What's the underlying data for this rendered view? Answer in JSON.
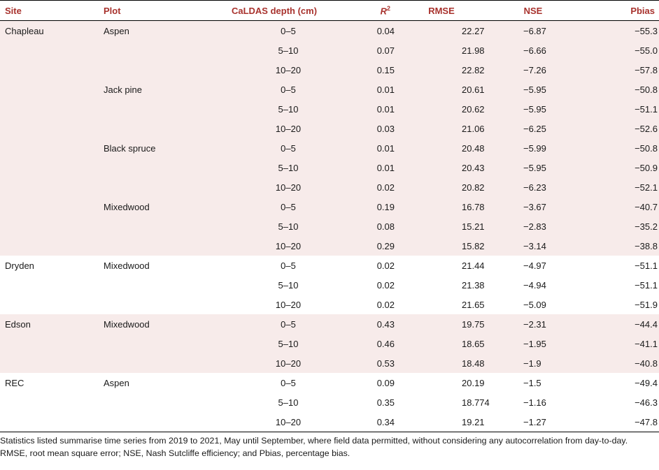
{
  "headers": {
    "site": "Site",
    "plot": "Plot",
    "depth": "CaLDAS depth (cm)",
    "r2_base": "R",
    "r2_sup": "2",
    "rmse": "RMSE",
    "nse": "NSE",
    "pbias": "Pbias"
  },
  "rows": [
    {
      "site": "Chapleau",
      "plot": "Aspen",
      "depth": "0–5",
      "r2": "0.04",
      "rmse": "22.27",
      "nse": "−6.87",
      "pbias": "−55.3"
    },
    {
      "site": "",
      "plot": "",
      "depth": "5–10",
      "r2": "0.07",
      "rmse": "21.98",
      "nse": "−6.66",
      "pbias": "−55.0"
    },
    {
      "site": "",
      "plot": "",
      "depth": "10–20",
      "r2": "0.15",
      "rmse": "22.82",
      "nse": "−7.26",
      "pbias": "−57.8"
    },
    {
      "site": "",
      "plot": "Jack pine",
      "depth": "0–5",
      "r2": "0.01",
      "rmse": "20.61",
      "nse": "−5.95",
      "pbias": "−50.8"
    },
    {
      "site": "",
      "plot": "",
      "depth": "5–10",
      "r2": "0.01",
      "rmse": "20.62",
      "nse": "−5.95",
      "pbias": "−51.1"
    },
    {
      "site": "",
      "plot": "",
      "depth": "10–20",
      "r2": "0.03",
      "rmse": "21.06",
      "nse": "−6.25",
      "pbias": "−52.6"
    },
    {
      "site": "",
      "plot": "Black spruce",
      "depth": "0–5",
      "r2": "0.01",
      "rmse": "20.48",
      "nse": "−5.99",
      "pbias": "−50.8"
    },
    {
      "site": "",
      "plot": "",
      "depth": "5–10",
      "r2": "0.01",
      "rmse": "20.43",
      "nse": "−5.95",
      "pbias": "−50.9"
    },
    {
      "site": "",
      "plot": "",
      "depth": "10–20",
      "r2": "0.02",
      "rmse": "20.82",
      "nse": "−6.23",
      "pbias": "−52.1"
    },
    {
      "site": "",
      "plot": "Mixedwood",
      "depth": "0–5",
      "r2": "0.19",
      "rmse": "16.78",
      "nse": "−3.67",
      "pbias": "−40.7"
    },
    {
      "site": "",
      "plot": "",
      "depth": "5–10",
      "r2": "0.08",
      "rmse": "15.21",
      "nse": "−2.83",
      "pbias": "−35.2"
    },
    {
      "site": "",
      "plot": "",
      "depth": "10–20",
      "r2": "0.29",
      "rmse": "15.82",
      "nse": "−3.14",
      "pbias": "−38.8"
    },
    {
      "site": "Dryden",
      "plot": "Mixedwood",
      "depth": "0–5",
      "r2": "0.02",
      "rmse": "21.44",
      "nse": "−4.97",
      "pbias": "−51.1"
    },
    {
      "site": "",
      "plot": "",
      "depth": "5–10",
      "r2": "0.02",
      "rmse": "21.38",
      "nse": "−4.94",
      "pbias": "−51.1"
    },
    {
      "site": "",
      "plot": "",
      "depth": "10–20",
      "r2": "0.02",
      "rmse": "21.65",
      "nse": "−5.09",
      "pbias": "−51.9"
    },
    {
      "site": "Edson",
      "plot": "Mixedwood",
      "depth": "0–5",
      "r2": "0.43",
      "rmse": "19.75",
      "nse": "−2.31",
      "pbias": "−44.4"
    },
    {
      "site": "",
      "plot": "",
      "depth": "5–10",
      "r2": "0.46",
      "rmse": "18.65",
      "nse": "−1.95",
      "pbias": "−41.1"
    },
    {
      "site": "",
      "plot": "",
      "depth": "10–20",
      "r2": "0.53",
      "rmse": "18.48",
      "nse": "−1.9",
      "pbias": "−40.8"
    },
    {
      "site": "REC",
      "plot": "Aspen",
      "depth": "0–5",
      "r2": "0.09",
      "rmse": "20.19",
      "nse": "−1.5",
      "pbias": "−49.4"
    },
    {
      "site": "",
      "plot": "",
      "depth": "5–10",
      "r2": "0.35",
      "rmse": "18.774",
      "nse": "−1.16",
      "pbias": "−46.3"
    },
    {
      "site": "",
      "plot": "",
      "depth": "10–20",
      "r2": "0.34",
      "rmse": "19.21",
      "nse": "−1.27",
      "pbias": "−47.8"
    }
  ],
  "shading": {
    "shaded_row_color": "#f7ebea",
    "header_text_color": "#a8322d"
  },
  "notes": {
    "line1": "Statistics listed summarise time series from 2019 to 2021, May until September, where field data permitted, without considering any autocorrelation from day-to-day.",
    "line2": "RMSE, root mean square error; NSE, Nash Sutcliffe efficiency; and Pbias, percentage bias."
  }
}
